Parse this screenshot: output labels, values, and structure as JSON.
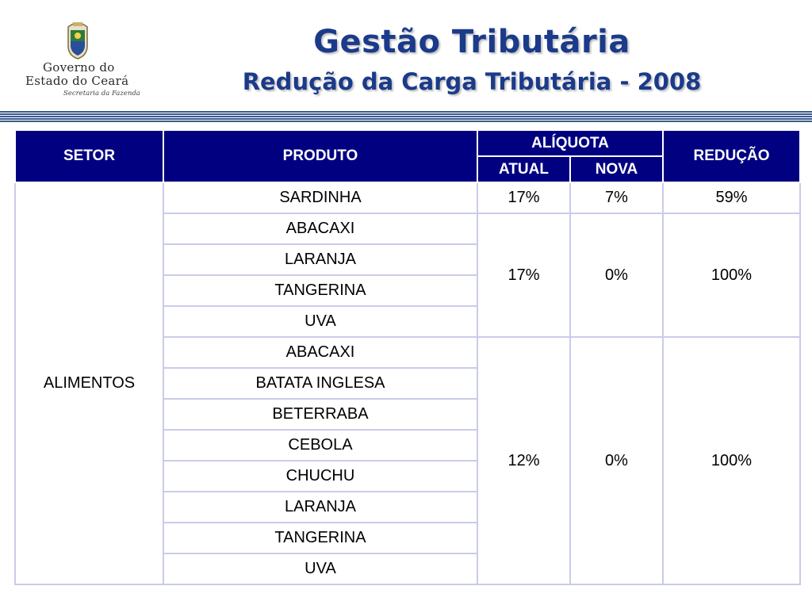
{
  "logo": {
    "line1": "Governo do",
    "line2": "Estado do Ceará",
    "line3": "Secretaria da Fazenda"
  },
  "header": {
    "title": "Gestão Tributária",
    "subtitle": "Redução da Carga Tributária - 2008"
  },
  "table": {
    "headers": {
      "setor": "SETOR",
      "produto": "PRODUTO",
      "aliquota": "ALÍQUOTA",
      "atual": "ATUAL",
      "nova": "NOVA",
      "reducao": "REDUÇÃO"
    },
    "setor": "ALIMENTOS",
    "groups": [
      {
        "products": [
          "SARDINHA"
        ],
        "atual": "17%",
        "nova": "7%",
        "reducao": "59%"
      },
      {
        "products": [
          "ABACAXI",
          "LARANJA",
          "TANGERINA",
          "UVA"
        ],
        "atual": "17%",
        "nova": "0%",
        "reducao": "100%"
      },
      {
        "products": [
          "ABACAXI",
          "BATATA INGLESA",
          "BETERRABA",
          "CEBOLA",
          "CHUCHU",
          "LARANJA",
          "TANGERINA",
          "UVA"
        ],
        "atual": "12%",
        "nova": "0%",
        "reducao": "100%"
      }
    ]
  }
}
